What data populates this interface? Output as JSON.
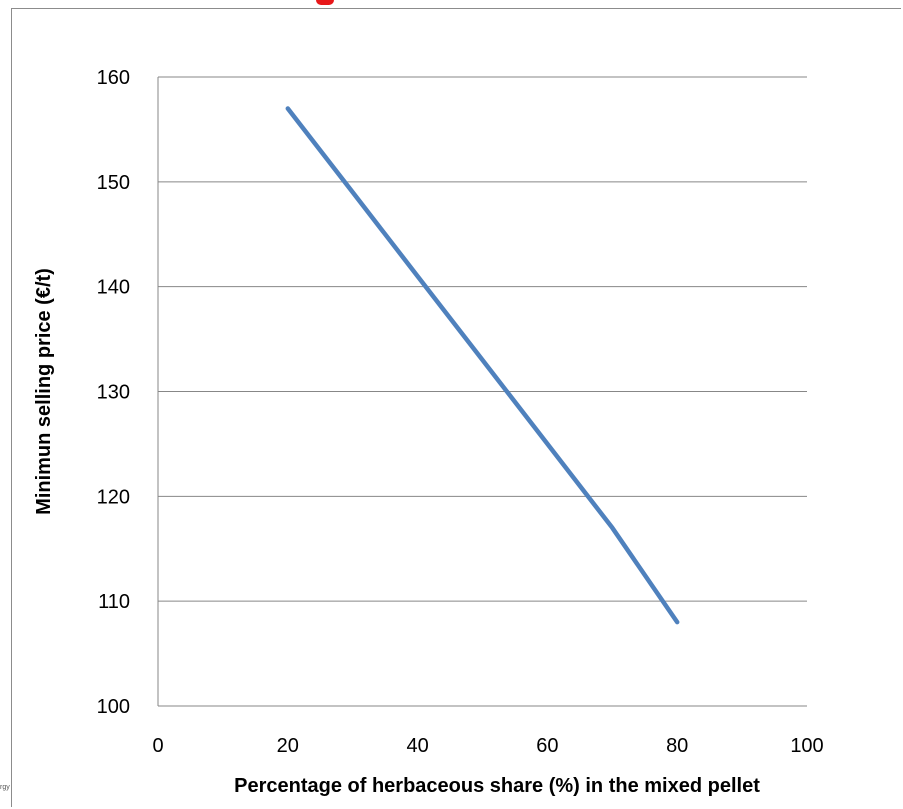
{
  "chart_data": {
    "type": "line",
    "title": "",
    "xlabel": "Percentage of herbaceous share (%) in the mixed pellet",
    "ylabel": "Minimun selling price (€/t)",
    "xlim": [
      0,
      100
    ],
    "ylim": [
      100,
      160
    ],
    "x_ticks": [
      "0",
      "20",
      "40",
      "60",
      "80",
      "100"
    ],
    "y_ticks": [
      "100",
      "110",
      "120",
      "130",
      "140",
      "150",
      "160"
    ],
    "grid": "horizontal",
    "legend": "none",
    "series": [
      {
        "color": "#4f81bd",
        "x": [
          20,
          30,
          40,
          50,
          60,
          70,
          80
        ],
        "y": [
          157,
          149,
          141,
          133,
          125,
          117,
          108
        ]
      }
    ]
  },
  "colors": {
    "line": "#4f81bd",
    "gridline": "#878787",
    "axis_text": "#000000",
    "title_fragment": "#e8181a"
  },
  "corner_text": "rgy"
}
